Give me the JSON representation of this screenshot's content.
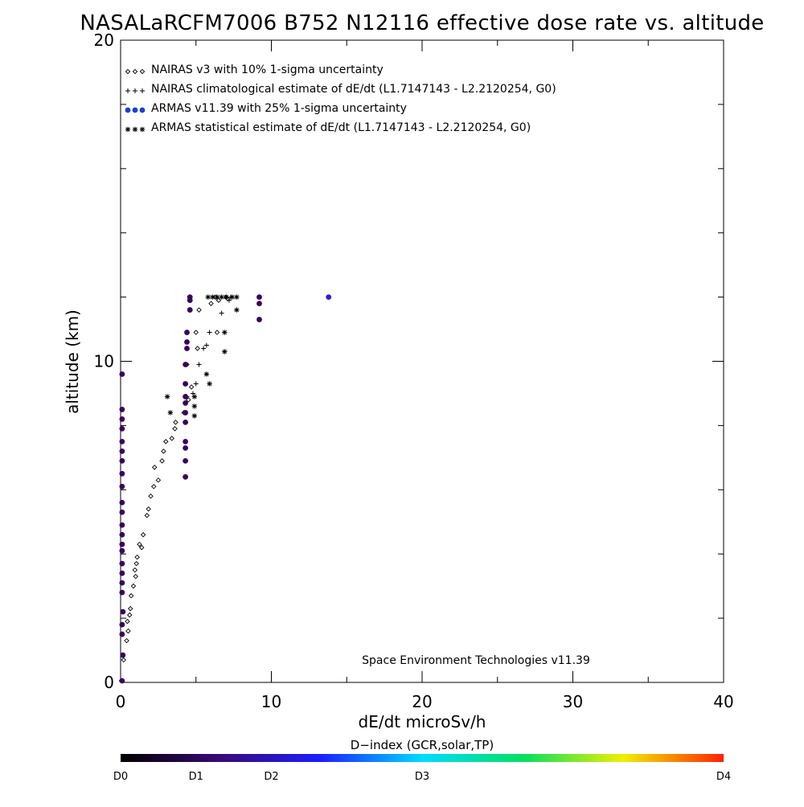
{
  "chart_data": {
    "type": "scatter",
    "title": "NASALaRCFM7006  B752 N12116 effective dose rate vs. altitude",
    "xlabel": "dE/dt microSv/h",
    "ylabel": "altitude (km)",
    "xlim": [
      0,
      40
    ],
    "ylim": [
      0,
      20
    ],
    "x_ticks": [
      0,
      10,
      20,
      30,
      40
    ],
    "y_ticks": [
      0,
      10,
      20
    ],
    "x_tick_labels": [
      "0",
      "10",
      "20",
      "30",
      "40"
    ],
    "y_tick_labels": [
      "0",
      "10",
      "20"
    ],
    "grid": false,
    "legend_position": "top-left",
    "credit": "Space Environment Technologies v11.39",
    "series": [
      {
        "name": "NAIRAS v3 with 10% 1-sigma uncertainty",
        "marker": "diamond",
        "legend_symbol": "◇◇◇",
        "color": "#000000",
        "points": [
          [
            0.05,
            0.05
          ],
          [
            0.2,
            0.7
          ],
          [
            0.4,
            1.3
          ],
          [
            0.5,
            1.6
          ],
          [
            0.45,
            1.9
          ],
          [
            0.6,
            2.1
          ],
          [
            0.65,
            2.3
          ],
          [
            0.7,
            2.7
          ],
          [
            0.85,
            3.0
          ],
          [
            1.0,
            3.3
          ],
          [
            0.95,
            3.5
          ],
          [
            1.05,
            3.7
          ],
          [
            1.1,
            3.9
          ],
          [
            1.25,
            4.3
          ],
          [
            1.4,
            4.2
          ],
          [
            1.5,
            4.6
          ],
          [
            1.75,
            5.2
          ],
          [
            1.85,
            5.4
          ],
          [
            2.0,
            5.8
          ],
          [
            2.2,
            6.1
          ],
          [
            2.5,
            6.3
          ],
          [
            2.25,
            6.7
          ],
          [
            2.75,
            6.9
          ],
          [
            2.85,
            7.2
          ],
          [
            3.0,
            7.5
          ],
          [
            3.4,
            7.6
          ],
          [
            3.6,
            7.9
          ],
          [
            3.65,
            8.1
          ],
          [
            4.2,
            8.4
          ],
          [
            4.5,
            8.8
          ],
          [
            4.7,
            9.2
          ],
          [
            4.4,
            9.9
          ],
          [
            5.1,
            10.4
          ],
          [
            5.0,
            10.9
          ],
          [
            6.4,
            10.9
          ],
          [
            5.2,
            11.6
          ],
          [
            6.0,
            11.8
          ],
          [
            6.5,
            11.9
          ],
          [
            6.3,
            12.0
          ],
          [
            7.1,
            11.95
          ],
          [
            7.0,
            12.0
          ]
        ]
      },
      {
        "name": "NAIRAS climatological estimate of dE/dt (L1.7147143 - L2.2120254, G0)",
        "marker": "plus",
        "legend_symbol": "+++",
        "color": "#000000",
        "points": [
          [
            4.4,
            8.9
          ],
          [
            4.8,
            9.0
          ],
          [
            5.0,
            9.3
          ],
          [
            5.2,
            9.9
          ],
          [
            5.5,
            10.4
          ],
          [
            5.7,
            10.5
          ],
          [
            5.9,
            10.9
          ],
          [
            6.7,
            11.5
          ],
          [
            7.2,
            11.9
          ],
          [
            7.3,
            12.0
          ]
        ]
      },
      {
        "name": "ARMAS v11.39 with 25% 1-sigma uncertainty",
        "marker": "filled-circle",
        "legend_symbol": "●●●",
        "color": "#3a005c",
        "legend_color": "#1a40d0",
        "points": [
          [
            0.1,
            0.05
          ],
          [
            0.15,
            0.85
          ],
          [
            0.1,
            1.5
          ],
          [
            0.1,
            1.8
          ],
          [
            0.15,
            2.2
          ],
          [
            0.1,
            2.8
          ],
          [
            0.1,
            3.1
          ],
          [
            0.1,
            3.4
          ],
          [
            0.1,
            3.7
          ],
          [
            0.1,
            4.1
          ],
          [
            0.1,
            4.3
          ],
          [
            0.1,
            4.6
          ],
          [
            0.1,
            4.9
          ],
          [
            0.1,
            5.3
          ],
          [
            0.1,
            5.6
          ],
          [
            0.1,
            6.1
          ],
          [
            0.1,
            6.5
          ],
          [
            0.1,
            6.9
          ],
          [
            0.1,
            7.2
          ],
          [
            0.1,
            7.5
          ],
          [
            0.1,
            7.9
          ],
          [
            0.1,
            8.2
          ],
          [
            0.1,
            8.5
          ],
          [
            0.1,
            9.6
          ],
          [
            4.3,
            6.4
          ],
          [
            4.3,
            6.9
          ],
          [
            4.3,
            7.3
          ],
          [
            4.3,
            7.5
          ],
          [
            4.3,
            8.1
          ],
          [
            4.3,
            8.4
          ],
          [
            4.3,
            8.7
          ],
          [
            4.3,
            8.9
          ],
          [
            4.3,
            9.3
          ],
          [
            4.3,
            9.9
          ],
          [
            4.4,
            10.4
          ],
          [
            4.4,
            10.6
          ],
          [
            4.4,
            10.9
          ],
          [
            4.6,
            11.6
          ],
          [
            4.6,
            11.9
          ],
          [
            4.6,
            12.0
          ],
          [
            9.2,
            11.3
          ],
          [
            9.2,
            11.8
          ],
          [
            9.2,
            12.0
          ]
        ]
      },
      {
        "name": "ARMAS statistical estimate of dE/dt (L1.7147143 - L2.2120254, G0)",
        "marker": "asterisk",
        "legend_symbol": "***",
        "color": "#000000",
        "points": [
          [
            3.1,
            8.9
          ],
          [
            3.3,
            8.4
          ],
          [
            4.9,
            8.3
          ],
          [
            4.9,
            8.6
          ],
          [
            4.9,
            8.9
          ],
          [
            5.7,
            9.6
          ],
          [
            5.9,
            9.3
          ],
          [
            6.9,
            10.3
          ],
          [
            6.9,
            10.9
          ],
          [
            7.7,
            11.6
          ],
          [
            5.8,
            12.0
          ],
          [
            6.1,
            12.0
          ],
          [
            6.4,
            12.0
          ],
          [
            6.7,
            12.0
          ],
          [
            7.0,
            12.0
          ],
          [
            7.4,
            12.0
          ],
          [
            7.7,
            12.0
          ]
        ]
      },
      {
        "name": "",
        "marker": "filled-circle",
        "color": "#2a20d8",
        "points": [
          [
            13.8,
            12.0
          ]
        ]
      }
    ],
    "colorbar": {
      "title": "D−index (GCR,solar,TP)",
      "range": [
        0,
        4
      ],
      "tick_labels": [
        "D0",
        "D1",
        "D2",
        "D3",
        "D4"
      ],
      "tick_values": [
        0,
        0.5,
        1.0,
        2.0,
        4.0
      ],
      "colors": [
        "#000000",
        "#3a0a78",
        "#1a20ff",
        "#00dcff",
        "#00e060",
        "#f0f000",
        "#ff2000"
      ]
    }
  }
}
